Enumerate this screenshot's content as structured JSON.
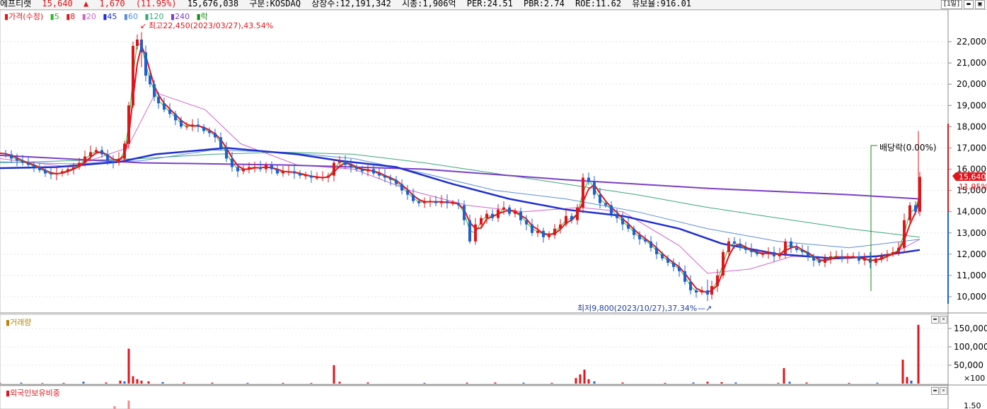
{
  "topbar": {
    "name": "에프티랫",
    "price": "15,640",
    "arrow": "▲",
    "change": "1,670",
    "change_pct": "(11.95%)",
    "volume": "15,676,038",
    "market": "구분:KOSDAQ",
    "shares": "상장수:12,191,342",
    "mcap": "시총:1,906억",
    "per": "PER:24.51",
    "pbr": "PBR:2.74",
    "roe": "ROE:11.62",
    "reserve": "유보율:916.01",
    "period_btn": "[1일]"
  },
  "legend": {
    "price": "가격(수정)",
    "ma": [
      "5",
      "8",
      "20",
      "45",
      "60",
      "120",
      "240"
    ],
    "rak": "락",
    "colors": [
      "#2eb82e",
      "#e0151b",
      "#cc66cc",
      "#1f2fd0",
      "#5a8fd8",
      "#3aa77a",
      "#7b3fc7"
    ]
  },
  "annotations": {
    "high": "최고22,450(2023/03/27),43.54%",
    "low": "최저9,800(2023/10/27),37.34%",
    "dividend": "배당락(0.00%)",
    "current_price": "15,640",
    "current_pct": "11.95%"
  },
  "volume_pane": {
    "title": "거래량",
    "ticks": [
      "150,000",
      "100,000",
      "50,000",
      "×100"
    ]
  },
  "foreign_pane": {
    "title": "외국인보유비중",
    "ticks": [
      "1.50"
    ]
  },
  "chart_data": {
    "type": "candlestick",
    "price_ticks": [
      22000,
      21000,
      20000,
      19000,
      18000,
      17000,
      16000,
      15000,
      14000,
      13000,
      12000,
      11000,
      10000
    ],
    "ylim": [
      9600,
      23100
    ],
    "high": 22450,
    "low": 9800,
    "last_close": 15640,
    "series_path": [
      [
        0,
        16750
      ],
      [
        8,
        16700
      ],
      [
        16,
        16500
      ],
      [
        24,
        16400
      ],
      [
        32,
        16300
      ],
      [
        40,
        16200
      ],
      [
        48,
        16100
      ],
      [
        56,
        15950
      ],
      [
        64,
        15800
      ],
      [
        72,
        15750
      ],
      [
        80,
        15800
      ],
      [
        88,
        15900
      ],
      [
        96,
        16000
      ],
      [
        104,
        16100
      ],
      [
        112,
        16300
      ],
      [
        120,
        16600
      ],
      [
        128,
        16800
      ],
      [
        136,
        16900
      ],
      [
        144,
        16700
      ],
      [
        152,
        16400
      ],
      [
        160,
        16300
      ],
      [
        168,
        16500
      ],
      [
        176,
        17200
      ],
      [
        182,
        19000
      ],
      [
        188,
        21800
      ],
      [
        194,
        22100
      ],
      [
        200,
        21500
      ],
      [
        206,
        20400
      ],
      [
        212,
        20000
      ],
      [
        218,
        19400
      ],
      [
        224,
        19100
      ],
      [
        232,
        18800
      ],
      [
        240,
        18600
      ],
      [
        248,
        18300
      ],
      [
        256,
        18000
      ],
      [
        264,
        18000
      ],
      [
        272,
        18100
      ],
      [
        280,
        18000
      ],
      [
        288,
        17800
      ],
      [
        296,
        17700
      ],
      [
        304,
        17500
      ],
      [
        312,
        17000
      ],
      [
        320,
        16500
      ],
      [
        328,
        16100
      ],
      [
        336,
        15900
      ],
      [
        344,
        16000
      ],
      [
        352,
        16100
      ],
      [
        360,
        16100
      ],
      [
        368,
        16000
      ],
      [
        376,
        16200
      ],
      [
        384,
        16000
      ],
      [
        392,
        15800
      ],
      [
        400,
        15900
      ],
      [
        408,
        15900
      ],
      [
        416,
        15800
      ],
      [
        424,
        15700
      ],
      [
        432,
        15700
      ],
      [
        440,
        15600
      ],
      [
        448,
        15600
      ],
      [
        456,
        15600
      ],
      [
        464,
        15700
      ],
      [
        472,
        16300
      ],
      [
        480,
        16400
      ],
      [
        488,
        16200
      ],
      [
        496,
        16100
      ],
      [
        504,
        16000
      ],
      [
        512,
        15900
      ],
      [
        520,
        16000
      ],
      [
        528,
        15800
      ],
      [
        536,
        15700
      ],
      [
        544,
        15600
      ],
      [
        552,
        15500
      ],
      [
        560,
        15300
      ],
      [
        568,
        15000
      ],
      [
        576,
        14800
      ],
      [
        584,
        14500
      ],
      [
        592,
        14400
      ],
      [
        600,
        14500
      ],
      [
        608,
        14500
      ],
      [
        616,
        14400
      ],
      [
        624,
        14500
      ],
      [
        632,
        14400
      ],
      [
        640,
        14400
      ],
      [
        648,
        14300
      ],
      [
        656,
        13600
      ],
      [
        664,
        12600
      ],
      [
        672,
        13400
      ],
      [
        680,
        13700
      ],
      [
        688,
        13900
      ],
      [
        696,
        13700
      ],
      [
        704,
        14100
      ],
      [
        712,
        14200
      ],
      [
        720,
        13900
      ],
      [
        728,
        14000
      ],
      [
        736,
        13600
      ],
      [
        744,
        13400
      ],
      [
        752,
        13000
      ],
      [
        760,
        13100
      ],
      [
        768,
        12800
      ],
      [
        776,
        12900
      ],
      [
        784,
        13200
      ],
      [
        792,
        13400
      ],
      [
        800,
        13800
      ],
      [
        808,
        13600
      ],
      [
        816,
        14200
      ],
      [
        824,
        15600
      ],
      [
        832,
        15400
      ],
      [
        840,
        14800
      ],
      [
        848,
        14400
      ],
      [
        856,
        14300
      ],
      [
        864,
        13900
      ],
      [
        872,
        13700
      ],
      [
        880,
        13400
      ],
      [
        888,
        13200
      ],
      [
        896,
        12900
      ],
      [
        904,
        12700
      ],
      [
        912,
        12600
      ],
      [
        920,
        12300
      ],
      [
        928,
        12000
      ],
      [
        936,
        11800
      ],
      [
        944,
        11600
      ],
      [
        952,
        11400
      ],
      [
        960,
        11200
      ],
      [
        968,
        10700
      ],
      [
        976,
        10300
      ],
      [
        984,
        10200
      ],
      [
        992,
        10300
      ],
      [
        1000,
        10100
      ],
      [
        1006,
        10500
      ],
      [
        1014,
        11000
      ],
      [
        1022,
        12100
      ],
      [
        1030,
        12600
      ],
      [
        1038,
        12500
      ],
      [
        1046,
        12300
      ],
      [
        1054,
        12200
      ],
      [
        1062,
        12100
      ],
      [
        1070,
        12000
      ],
      [
        1078,
        12000
      ],
      [
        1086,
        12100
      ],
      [
        1094,
        11900
      ],
      [
        1102,
        12000
      ],
      [
        1110,
        12600
      ],
      [
        1118,
        12300
      ],
      [
        1126,
        12200
      ],
      [
        1134,
        12100
      ],
      [
        1142,
        11900
      ],
      [
        1150,
        11700
      ],
      [
        1158,
        11600
      ],
      [
        1166,
        11800
      ],
      [
        1174,
        11900
      ],
      [
        1182,
        11900
      ],
      [
        1190,
        11800
      ],
      [
        1198,
        11900
      ],
      [
        1206,
        11900
      ],
      [
        1214,
        11700
      ],
      [
        1222,
        11800
      ],
      [
        1230,
        11600
      ],
      [
        1238,
        11800
      ],
      [
        1246,
        11900
      ],
      [
        1254,
        12000
      ],
      [
        1262,
        12100
      ],
      [
        1270,
        12300
      ],
      [
        1278,
        13600
      ],
      [
        1286,
        14300
      ],
      [
        1294,
        14000
      ],
      [
        1300,
        15640
      ]
    ],
    "ma_points": {
      "ma20": [
        [
          0,
          16500
        ],
        [
          100,
          16100
        ],
        [
          180,
          17000
        ],
        [
          220,
          19600
        ],
        [
          290,
          18800
        ],
        [
          340,
          17200
        ],
        [
          420,
          16200
        ],
        [
          500,
          16000
        ],
        [
          580,
          15000
        ],
        [
          660,
          14300
        ],
        [
          740,
          14000
        ],
        [
          820,
          14200
        ],
        [
          880,
          14000
        ],
        [
          960,
          12400
        ],
        [
          1000,
          11100
        ],
        [
          1060,
          11300
        ],
        [
          1120,
          11900
        ],
        [
          1200,
          11800
        ],
        [
          1260,
          12000
        ],
        [
          1300,
          12700
        ]
      ],
      "ma45": [
        [
          0,
          16050
        ],
        [
          80,
          16100
        ],
        [
          170,
          16350
        ],
        [
          220,
          16700
        ],
        [
          320,
          17000
        ],
        [
          420,
          16700
        ],
        [
          480,
          16400
        ],
        [
          560,
          16100
        ],
        [
          640,
          15300
        ],
        [
          720,
          14600
        ],
        [
          800,
          14100
        ],
        [
          880,
          13800
        ],
        [
          960,
          13200
        ],
        [
          1020,
          12500
        ],
        [
          1100,
          12000
        ],
        [
          1180,
          11800
        ],
        [
          1240,
          11900
        ],
        [
          1300,
          12200
        ]
      ],
      "ma60": [
        [
          0,
          16350
        ],
        [
          100,
          16250
        ],
        [
          200,
          16400
        ],
        [
          300,
          16900
        ],
        [
          400,
          16800
        ],
        [
          500,
          16500
        ],
        [
          600,
          15800
        ],
        [
          700,
          15000
        ],
        [
          800,
          14600
        ],
        [
          900,
          14000
        ],
        [
          1000,
          13200
        ],
        [
          1100,
          12600
        ],
        [
          1200,
          12300
        ],
        [
          1300,
          12700
        ]
      ],
      "ma120": [
        [
          0,
          16300
        ],
        [
          200,
          16500
        ],
        [
          300,
          16700
        ],
        [
          400,
          16800
        ],
        [
          500,
          16700
        ],
        [
          600,
          16300
        ],
        [
          700,
          15800
        ],
        [
          800,
          15300
        ],
        [
          900,
          14800
        ],
        [
          1000,
          14200
        ],
        [
          1100,
          13700
        ],
        [
          1200,
          13200
        ],
        [
          1300,
          12800
        ]
      ],
      "ma240": [
        [
          0,
          16650
        ],
        [
          200,
          16300
        ],
        [
          400,
          16200
        ],
        [
          600,
          16000
        ],
        [
          800,
          15500
        ],
        [
          1000,
          15100
        ],
        [
          1200,
          14800
        ],
        [
          1300,
          14600
        ]
      ]
    },
    "volume_ticks": [
      150000,
      100000,
      50000
    ],
    "volume_max": 165000,
    "volume_bars": [
      [
        0,
        1500
      ],
      [
        30,
        2500
      ],
      [
        60,
        1500
      ],
      [
        90,
        2000
      ],
      [
        118,
        5000
      ],
      [
        150,
        3000
      ],
      [
        170,
        8000
      ],
      [
        176,
        6000
      ],
      [
        182,
        95000
      ],
      [
        188,
        20000
      ],
      [
        194,
        12000
      ],
      [
        200,
        8000
      ],
      [
        210,
        6000
      ],
      [
        230,
        4000
      ],
      [
        260,
        3000
      ],
      [
        300,
        2500
      ],
      [
        350,
        2000
      ],
      [
        400,
        2000
      ],
      [
        440,
        1800
      ],
      [
        472,
        50000
      ],
      [
        480,
        5000
      ],
      [
        520,
        3000
      ],
      [
        600,
        2000
      ],
      [
        660,
        2500
      ],
      [
        700,
        3000
      ],
      [
        740,
        2500
      ],
      [
        780,
        2000
      ],
      [
        814,
        15000
      ],
      [
        820,
        25000
      ],
      [
        826,
        38000
      ],
      [
        832,
        12000
      ],
      [
        840,
        6000
      ],
      [
        880,
        3000
      ],
      [
        940,
        2000
      ],
      [
        980,
        3000
      ],
      [
        1000,
        5000
      ],
      [
        1020,
        4000
      ],
      [
        1040,
        3000
      ],
      [
        1100,
        2000
      ],
      [
        1108,
        42000
      ],
      [
        1116,
        5000
      ],
      [
        1140,
        3000
      ],
      [
        1200,
        2000
      ],
      [
        1240,
        2500
      ],
      [
        1276,
        65000
      ],
      [
        1282,
        18000
      ],
      [
        1288,
        8000
      ],
      [
        1298,
        160000
      ]
    ],
    "foreign_bars": [
      [
        182,
        12
      ],
      [
        162,
        4
      ]
    ],
    "dividend_x": 1231
  }
}
